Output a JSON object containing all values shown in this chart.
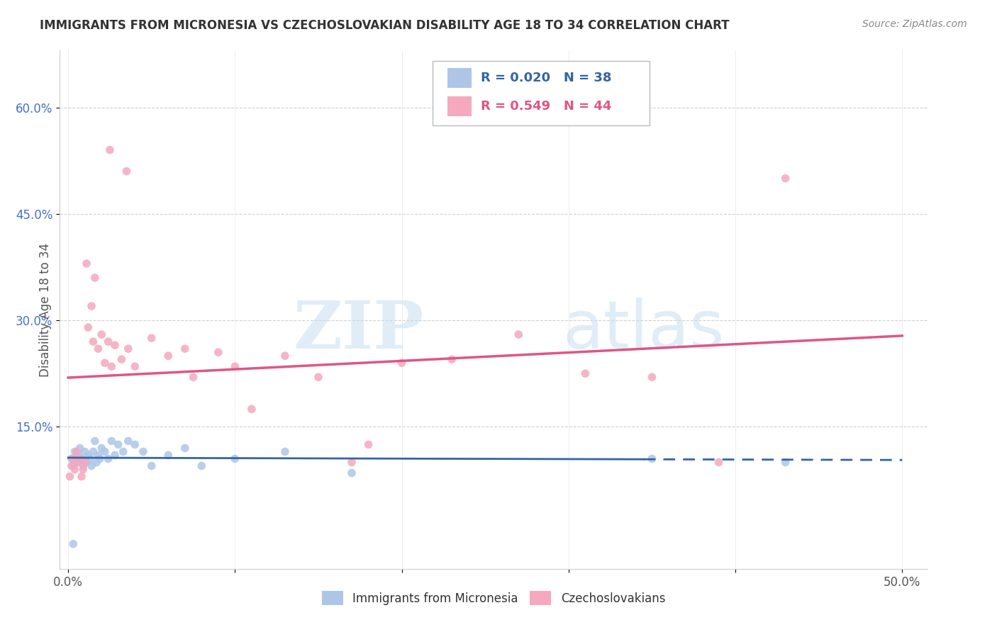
{
  "title": "IMMIGRANTS FROM MICRONESIA VS CZECHOSLOVAKIAN DISABILITY AGE 18 TO 34 CORRELATION CHART",
  "source": "Source: ZipAtlas.com",
  "ylabel": "Disability Age 18 to 34",
  "xlim": [
    -0.005,
    0.515
  ],
  "ylim": [
    -0.05,
    0.68
  ],
  "xticks": [
    0.0,
    0.1,
    0.2,
    0.3,
    0.4,
    0.5
  ],
  "yticks": [
    0.15,
    0.3,
    0.45,
    0.6
  ],
  "ytick_labels": [
    "15.0%",
    "30.0%",
    "45.0%",
    "60.0%"
  ],
  "background_color": "#ffffff",
  "watermark_zip": "ZIP",
  "watermark_atlas": "atlas",
  "legend_r1": "R = 0.020",
  "legend_n1": "N = 38",
  "legend_r2": "R = 0.549",
  "legend_n2": "N = 44",
  "micronesia_color": "#adc6e8",
  "czech_color": "#f5a8be",
  "micronesia_line_color": "#3465a4",
  "czech_line_color": "#e05585",
  "title_color": "#333333",
  "source_color": "#888888",
  "ylabel_color": "#555555",
  "ytick_color": "#4472c4",
  "grid_color": "#cccccc",
  "mic_x": [
    0.002,
    0.003,
    0.004,
    0.005,
    0.006,
    0.007,
    0.008,
    0.009,
    0.01,
    0.011,
    0.012,
    0.013,
    0.014,
    0.015,
    0.016,
    0.017,
    0.018,
    0.019,
    0.02,
    0.022,
    0.024,
    0.026,
    0.028,
    0.03,
    0.033,
    0.036,
    0.04,
    0.045,
    0.05,
    0.06,
    0.07,
    0.08,
    0.1,
    0.13,
    0.17,
    0.35,
    0.43,
    0.003
  ],
  "mic_y": [
    0.105,
    0.095,
    0.115,
    0.1,
    0.11,
    0.12,
    0.105,
    0.095,
    0.115,
    0.1,
    0.11,
    0.105,
    0.095,
    0.115,
    0.13,
    0.1,
    0.11,
    0.105,
    0.12,
    0.115,
    0.105,
    0.13,
    0.11,
    0.125,
    0.115,
    0.13,
    0.125,
    0.115,
    0.095,
    0.11,
    0.12,
    0.095,
    0.105,
    0.115,
    0.085,
    0.105,
    0.1,
    -0.015
  ],
  "cz_x": [
    0.001,
    0.002,
    0.003,
    0.004,
    0.005,
    0.006,
    0.007,
    0.008,
    0.009,
    0.01,
    0.011,
    0.012,
    0.014,
    0.015,
    0.016,
    0.018,
    0.02,
    0.022,
    0.024,
    0.026,
    0.028,
    0.032,
    0.036,
    0.04,
    0.05,
    0.06,
    0.075,
    0.09,
    0.1,
    0.11,
    0.13,
    0.15,
    0.17,
    0.2,
    0.23,
    0.27,
    0.31,
    0.35,
    0.39,
    0.07,
    0.035,
    0.025,
    0.18,
    0.43
  ],
  "cz_y": [
    0.08,
    0.095,
    0.105,
    0.09,
    0.115,
    0.1,
    0.105,
    0.08,
    0.09,
    0.1,
    0.38,
    0.29,
    0.32,
    0.27,
    0.36,
    0.26,
    0.28,
    0.24,
    0.27,
    0.235,
    0.265,
    0.245,
    0.26,
    0.235,
    0.275,
    0.25,
    0.22,
    0.255,
    0.235,
    0.175,
    0.25,
    0.22,
    0.1,
    0.24,
    0.245,
    0.28,
    0.225,
    0.22,
    0.1,
    0.26,
    0.51,
    0.54,
    0.125,
    0.5
  ]
}
